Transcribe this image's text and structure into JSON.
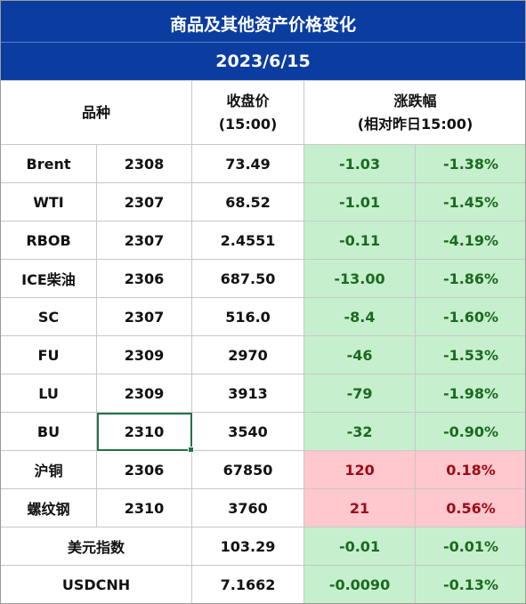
{
  "header": {
    "title": "商品及其他资产价格变化",
    "date": "2023/6/15"
  },
  "columns": {
    "variety": "品种",
    "close_line1": "收盘价",
    "close_line2": "(15:00)",
    "change_line1": "涨跌幅",
    "change_line2": "(相对昨日15:00)"
  },
  "rows": [
    {
      "name": "Brent",
      "contract": "2308",
      "close": "73.49",
      "chg": "-1.03",
      "pct": "-1.38%",
      "dir": "down"
    },
    {
      "name": "WTI",
      "contract": "2307",
      "close": "68.52",
      "chg": "-1.01",
      "pct": "-1.45%",
      "dir": "down"
    },
    {
      "name": "RBOB",
      "contract": "2307",
      "close": "2.4551",
      "chg": "-0.11",
      "pct": "-4.19%",
      "dir": "down"
    },
    {
      "name": "ICE柴油",
      "contract": "2306",
      "close": "687.50",
      "chg": "-13.00",
      "pct": "-1.86%",
      "dir": "down"
    },
    {
      "name": "SC",
      "contract": "2307",
      "close": "516.0",
      "chg": "-8.4",
      "pct": "-1.60%",
      "dir": "down"
    },
    {
      "name": "FU",
      "contract": "2309",
      "close": "2970",
      "chg": "-46",
      "pct": "-1.53%",
      "dir": "down"
    },
    {
      "name": "LU",
      "contract": "2309",
      "close": "3913",
      "chg": "-79",
      "pct": "-1.98%",
      "dir": "down"
    },
    {
      "name": "BU",
      "contract": "2310",
      "close": "3540",
      "chg": "-32",
      "pct": "-0.90%",
      "dir": "down"
    },
    {
      "name": "沪铜",
      "contract": "2306",
      "close": "67850",
      "chg": "120",
      "pct": "0.18%",
      "dir": "up"
    },
    {
      "name": "螺纹钢",
      "contract": "2310",
      "close": "3760",
      "chg": "21",
      "pct": "0.56%",
      "dir": "up"
    },
    {
      "name": "美元指数",
      "contract": "",
      "close": "103.29",
      "chg": "-0.01",
      "pct": "-0.01%",
      "dir": "down"
    },
    {
      "name": "USDCNH",
      "contract": "",
      "close": "7.1662",
      "chg": "-0.0090",
      "pct": "-0.13%",
      "dir": "down"
    }
  ],
  "colors": {
    "banner": "#0a3d9f",
    "down_fill": "#c6efce",
    "down_text": "#1a6b1e",
    "up_fill": "#ffc7ce",
    "up_text": "#9c0b14",
    "selection": "#217346"
  }
}
